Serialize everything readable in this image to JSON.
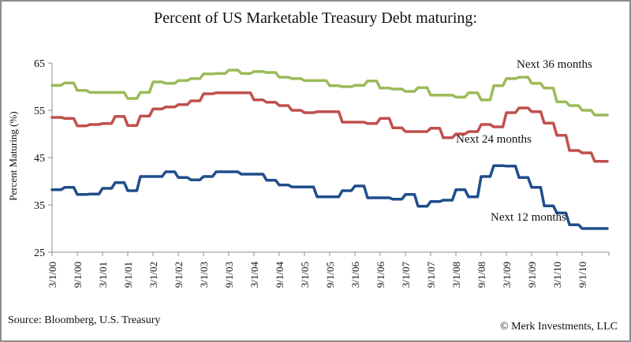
{
  "chart_data": {
    "type": "line",
    "title": "Percent of US Marketable Treasury Debt maturing:",
    "xlabel": "",
    "ylabel": "Percent Maturing (%)",
    "ylim": [
      25,
      65
    ],
    "yticks": [
      25,
      35,
      45,
      55,
      65
    ],
    "grid": false,
    "legend": "inline labels",
    "x_tick_labels": [
      "3/1/00",
      "9/1/00",
      "3/1/01",
      "9/1/01",
      "3/1/02",
      "9/1/02",
      "3/1/03",
      "9/1/03",
      "3/1/04",
      "9/1/04",
      "3/1/05",
      "9/1/05",
      "3/1/06",
      "9/1/06",
      "3/1/07",
      "9/1/07",
      "3/1/08",
      "9/1/08",
      "3/1/09",
      "9/1/09",
      "3/1/10",
      "9/1/10"
    ],
    "x_unit": "quarters since 3/1/00",
    "x_range": [
      0,
      44.3
    ],
    "series": [
      {
        "name": "Next 36 months",
        "color": "#9bbb59",
        "values": [
          60.3,
          60.8,
          59.2,
          58.8,
          58.8,
          58.8,
          57.5,
          58.8,
          61.0,
          60.7,
          61.3,
          61.7,
          62.7,
          62.8,
          63.5,
          62.8,
          63.2,
          63.0,
          62.0,
          61.7,
          61.3,
          61.3,
          60.2,
          60.0,
          60.3,
          61.2,
          59.7,
          59.5,
          59.0,
          59.8,
          58.2,
          58.2,
          57.8,
          58.7,
          57.2,
          60.2,
          61.7,
          62.0,
          60.7,
          59.7,
          56.8,
          56.0,
          55.0,
          54.0,
          54.0
        ]
      },
      {
        "name": "Next 24 months",
        "color": "#c0504d",
        "values": [
          53.5,
          53.3,
          51.7,
          52.0,
          52.2,
          53.7,
          51.8,
          53.8,
          55.3,
          55.7,
          56.2,
          57.0,
          58.5,
          58.7,
          58.7,
          58.7,
          57.2,
          56.7,
          56.0,
          55.0,
          54.5,
          54.7,
          54.7,
          52.5,
          52.5,
          52.2,
          53.3,
          51.3,
          50.5,
          50.5,
          51.2,
          49.2,
          50.0,
          50.5,
          52.0,
          51.5,
          54.5,
          55.5,
          54.7,
          52.3,
          49.7,
          46.5,
          46.0,
          44.2,
          44.2
        ]
      },
      {
        "name": "Next 12 months",
        "color": "#1f4e8c",
        "values": [
          38.2,
          38.7,
          37.2,
          37.3,
          38.5,
          39.7,
          38.0,
          41.0,
          41.0,
          42.0,
          40.8,
          40.3,
          41.0,
          42.0,
          42.0,
          41.5,
          41.5,
          40.2,
          39.2,
          38.8,
          38.8,
          36.7,
          36.7,
          38.0,
          39.0,
          36.5,
          36.5,
          36.2,
          37.2,
          34.7,
          35.7,
          36.0,
          38.2,
          36.7,
          41.0,
          43.3,
          43.2,
          40.8,
          38.7,
          34.8,
          33.3,
          30.8,
          30.0,
          30.0,
          30.0
        ]
      }
    ],
    "annotations": [
      "Next 36 months",
      "Next 24 months",
      "Next 12 months"
    ]
  },
  "footer": {
    "source": "Source: Bloomberg, U.S. Treasury",
    "copyright": "© Merk Investments, LLC"
  }
}
